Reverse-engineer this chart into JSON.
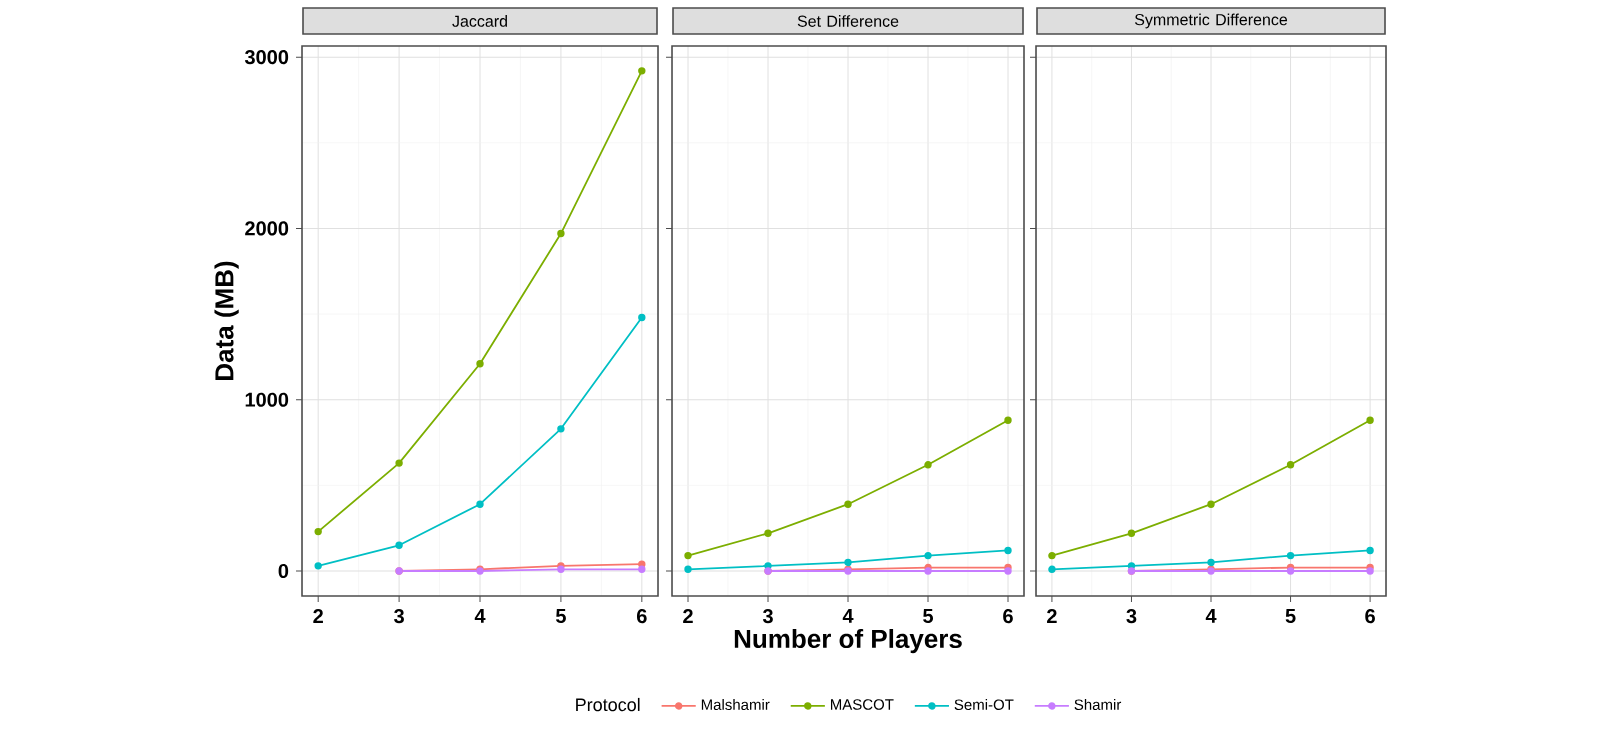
{
  "chart_data": [
    {
      "type": "line",
      "title": "Jaccard",
      "ylabel": "Data (MB)",
      "xlim": [
        1.8,
        6.2
      ],
      "ylim": [
        -146,
        3065
      ],
      "xticks": [
        2,
        3,
        4,
        5,
        6
      ],
      "yticks": [
        0,
        1000,
        2000,
        3000
      ],
      "grid": true,
      "marker": "circle",
      "series": [
        {
          "color": "#f8766d",
          "x": [
            3,
            4,
            5,
            6
          ],
          "values": [
            0,
            10,
            30,
            40
          ]
        },
        {
          "color": "#7cae00",
          "x": [
            2,
            3,
            4,
            5,
            6
          ],
          "values": [
            230,
            630,
            1210,
            1970,
            2920
          ]
        },
        {
          "color": "#00bfc4",
          "x": [
            2,
            3,
            4,
            5,
            6
          ],
          "values": [
            30,
            150,
            390,
            830,
            1480
          ]
        },
        {
          "color": "#c77cff",
          "x": [
            3,
            4,
            5,
            6
          ],
          "values": [
            0,
            0,
            10,
            10
          ]
        }
      ]
    },
    {
      "type": "line",
      "title": "Set Difference",
      "xlabel": "Number of Players",
      "legend_title": "Protocol",
      "legend": "bottom",
      "tick_labels": "x",
      "xlim": [
        1.8,
        6.2
      ],
      "ylim": [
        -146,
        3065
      ],
      "xticks": [
        2,
        3,
        4,
        5,
        6
      ],
      "yticks": [
        0,
        1000,
        2000,
        3000
      ],
      "grid": true,
      "marker": "circle",
      "series": [
        {
          "name": "Malshamir",
          "color": "#f8766d",
          "x": [
            3,
            4,
            5,
            6
          ],
          "values": [
            0,
            10,
            20,
            20
          ]
        },
        {
          "name": "MASCOT",
          "color": "#7cae00",
          "x": [
            2,
            3,
            4,
            5,
            6
          ],
          "values": [
            90,
            220,
            390,
            620,
            880
          ]
        },
        {
          "name": "Semi-OT",
          "color": "#00bfc4",
          "x": [
            2,
            3,
            4,
            5,
            6
          ],
          "values": [
            10,
            30,
            50,
            90,
            120
          ]
        },
        {
          "name": "Shamir",
          "color": "#c77cff",
          "x": [
            3,
            4,
            5,
            6
          ],
          "values": [
            0,
            0,
            0,
            0
          ]
        }
      ]
    },
    {
      "type": "line",
      "title": "Symmetric Difference",
      "tick_labels": "x",
      "xlim": [
        1.8,
        6.2
      ],
      "ylim": [
        -146,
        3065
      ],
      "xticks": [
        2,
        3,
        4,
        5,
        6
      ],
      "yticks": [
        0,
        1000,
        2000,
        3000
      ],
      "grid": true,
      "marker": "circle",
      "series": [
        {
          "color": "#f8766d",
          "x": [
            3,
            4,
            5,
            6
          ],
          "values": [
            0,
            10,
            20,
            20
          ]
        },
        {
          "color": "#7cae00",
          "x": [
            2,
            3,
            4,
            5,
            6
          ],
          "values": [
            90,
            220,
            390,
            620,
            880
          ]
        },
        {
          "color": "#00bfc4",
          "x": [
            2,
            3,
            4,
            5,
            6
          ],
          "values": [
            10,
            30,
            50,
            90,
            120
          ]
        },
        {
          "color": "#c77cff",
          "x": [
            3,
            4,
            5,
            6
          ],
          "values": [
            0,
            0,
            0,
            0
          ]
        }
      ]
    }
  ]
}
